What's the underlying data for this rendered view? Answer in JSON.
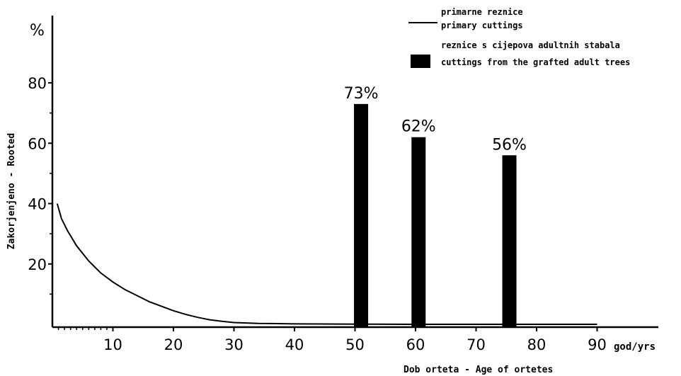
{
  "chart_data": {
    "type": "bar",
    "y_unit": "%",
    "ylabel": "Zakorjenjeno - Rooted",
    "xlabel": "Dob orteta - Age of ortetes",
    "x_unit": "god/yrs",
    "xlim": [
      0,
      100
    ],
    "ylim": [
      0,
      80
    ],
    "x_ticks": [
      10,
      20,
      30,
      40,
      50,
      60,
      70,
      80,
      90
    ],
    "y_ticks": [
      20,
      40,
      60,
      80
    ],
    "legend": {
      "placement": "top-right",
      "line_label_1": "primarne reznice",
      "line_label_2": "primary cuttings",
      "bar_label_1": "reznice s cijepova adultnih stabala",
      "bar_label_2": "cuttings from the grafted adult trees"
    },
    "series": [
      {
        "type": "line",
        "points": [
          [
            0.8,
            40
          ],
          [
            1.5,
            35
          ],
          [
            2.5,
            31
          ],
          [
            4,
            26
          ],
          [
            6,
            21
          ],
          [
            8,
            17
          ],
          [
            10,
            14
          ],
          [
            12,
            11.5
          ],
          [
            14,
            9.5
          ],
          [
            16,
            7.5
          ],
          [
            18,
            6
          ],
          [
            20,
            4.5
          ],
          [
            22,
            3.3
          ],
          [
            24,
            2.3
          ],
          [
            26,
            1.5
          ],
          [
            28,
            1
          ],
          [
            30,
            0.6
          ],
          [
            34,
            0.3
          ],
          [
            40,
            0.15
          ],
          [
            50,
            0.05
          ],
          [
            60,
            0
          ],
          [
            90,
            0
          ]
        ]
      },
      {
        "type": "bar",
        "bars": [
          {
            "x": 51,
            "value": 73,
            "label": "73%"
          },
          {
            "x": 60.5,
            "value": 62,
            "label": "62%"
          },
          {
            "x": 75.5,
            "value": 56,
            "label": "56%"
          }
        ]
      }
    ]
  }
}
